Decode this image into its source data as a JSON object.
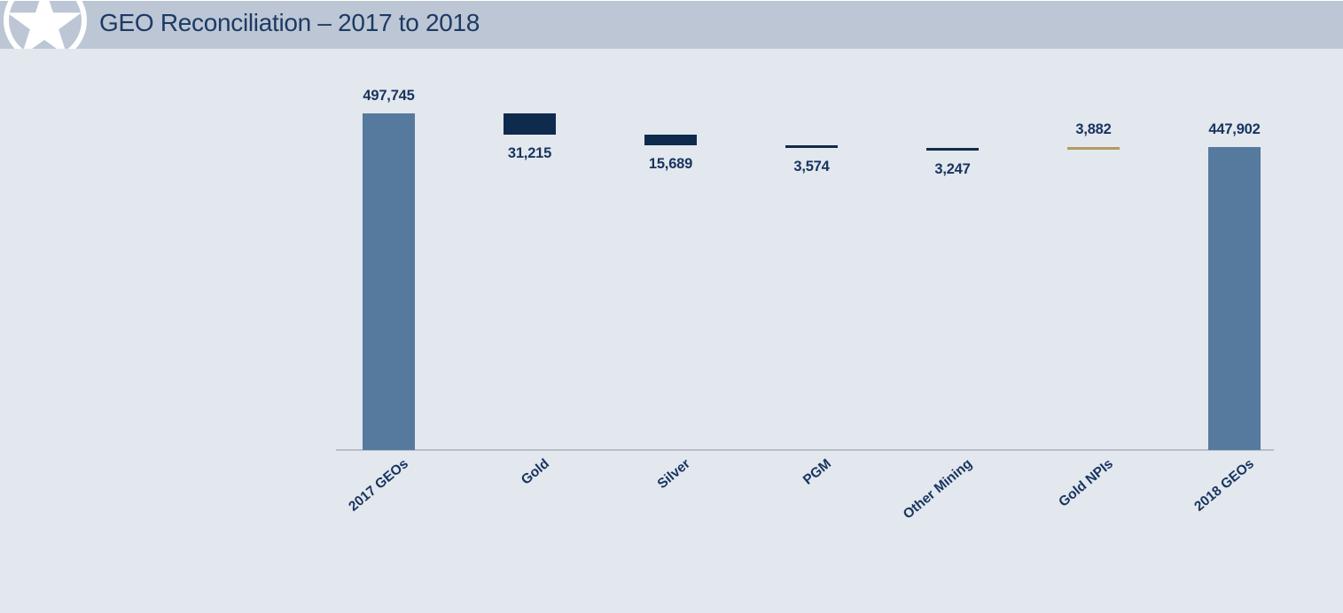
{
  "header": {
    "title": "GEO Reconciliation – 2017 to 2018",
    "logo": "star-in-circle"
  },
  "colors": {
    "header_bg": "#bcc6d5",
    "body_bg": "#e3e7ee",
    "title_text": "#1d3a63",
    "label_text": "#16345f",
    "total_bar": "#56799e",
    "decrease_bar": "#0e2b4e",
    "increase_bar": "#b49b5c",
    "axis_line": "#b7bdc8",
    "logo_white": "#ffffff"
  },
  "chart_data": {
    "type": "bar",
    "subtype": "waterfall",
    "title": "GEO Reconciliation – 2017 to 2018",
    "xlabel": "",
    "ylabel": "",
    "grid": false,
    "legend": false,
    "ylim": [
      0,
      530000
    ],
    "categories": [
      "2017 GEOs",
      "Gold",
      "Silver",
      "PGM",
      "Other Mining",
      "Gold NPIs",
      "2018 GEOs"
    ],
    "values": [
      497745,
      -31215,
      -15689,
      -3574,
      -3247,
      3882,
      447902
    ],
    "bars": [
      {
        "label": "2017 GEOs",
        "value": 497745,
        "display": "497,745",
        "kind": "total",
        "from": 0,
        "to": 497745,
        "label_position": "above"
      },
      {
        "label": "Gold",
        "value": -31215,
        "display": "31,215",
        "kind": "decrease",
        "from": 466530,
        "to": 497745,
        "label_position": "below"
      },
      {
        "label": "Silver",
        "value": -15689,
        "display": "15,689",
        "kind": "decrease",
        "from": 450841,
        "to": 466530,
        "label_position": "below"
      },
      {
        "label": "PGM",
        "value": -3574,
        "display": "3,574",
        "kind": "decrease",
        "from": 447267,
        "to": 450841,
        "label_position": "below"
      },
      {
        "label": "Other Mining",
        "value": -3247,
        "display": "3,247",
        "kind": "decrease",
        "from": 444020,
        "to": 447267,
        "label_position": "below"
      },
      {
        "label": "Gold NPIs",
        "value": 3882,
        "display": "3,882",
        "kind": "increase",
        "from": 444020,
        "to": 447902,
        "label_position": "above"
      },
      {
        "label": "2018 GEOs",
        "value": 447902,
        "display": "447,902",
        "kind": "total",
        "from": 0,
        "to": 447902,
        "label_position": "above"
      }
    ]
  }
}
